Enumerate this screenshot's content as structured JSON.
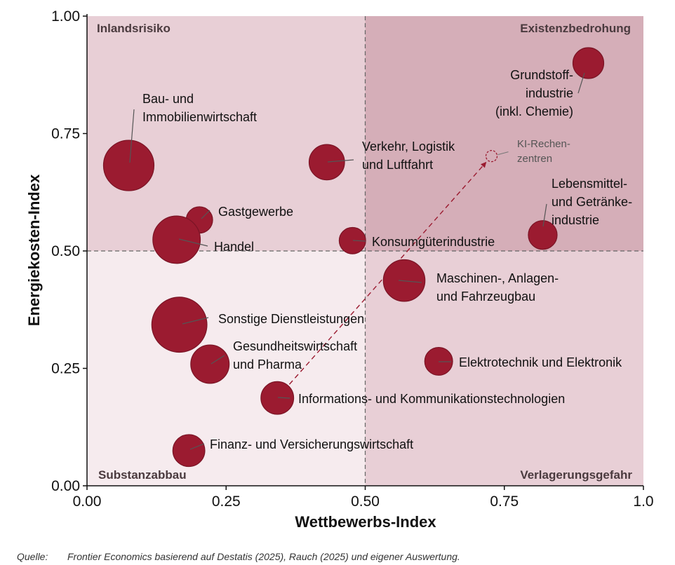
{
  "chart_data": {
    "type": "scatter",
    "subtype": "bubble",
    "xlabel": "Wettbewerbs-Index",
    "ylabel": "Energiekosten-Index",
    "xlim": [
      0,
      1
    ],
    "ylim": [
      0,
      1
    ],
    "xticks": [
      "0.00",
      "0.25",
      "0.50",
      "0.75",
      "1.0"
    ],
    "yticks": [
      "0.00",
      "0.25",
      "0.50",
      "0.75",
      "1.00"
    ],
    "quadrant_split": {
      "x": 0.5,
      "y": 0.5
    },
    "quadrants": {
      "top_left": "Inlandsrisiko",
      "top_right": "Existenzbedrohung",
      "bottom_left": "Substanzabbau",
      "bottom_right": "Verlagerungsgefahr"
    },
    "colors": {
      "bubble": "#9b1b30",
      "bubble_edge": "#7a1425",
      "quad_top_left": "#e8cfd6",
      "quad_top_right": "#d5aeb8",
      "quad_bottom_left": "#f6ebee",
      "quad_bottom_right": "#e8cfd6"
    },
    "points": [
      {
        "label": [
          "Bau- und",
          "Immobilienwirtschaft"
        ],
        "x": 0.075,
        "y": 0.682,
        "size": 1.0
      },
      {
        "label": [
          "Gastgewerbe"
        ],
        "x": 0.202,
        "y": 0.566,
        "size": 0.15
      },
      {
        "label": [
          "Handel"
        ],
        "x": 0.161,
        "y": 0.524,
        "size": 0.85
      },
      {
        "label": [
          "Sonstige Dienstleistungen"
        ],
        "x": 0.166,
        "y": 0.343,
        "size": 1.25
      },
      {
        "label": [
          "Gesundheitswirtschaft",
          "und Pharma"
        ],
        "x": 0.221,
        "y": 0.259,
        "size": 0.48
      },
      {
        "label": [
          "Finanz- und Versicherungswirtschaft"
        ],
        "x": 0.183,
        "y": 0.075,
        "size": 0.28
      },
      {
        "label": [
          "Informations- und Kommunikationstechnologien"
        ],
        "x": 0.342,
        "y": 0.187,
        "size": 0.3
      },
      {
        "label": [
          "Verkehr, Logistik",
          "und Luftfahrt"
        ],
        "x": 0.431,
        "y": 0.689,
        "size": 0.38
      },
      {
        "label": [
          "Konsumgüterindustrie"
        ],
        "x": 0.477,
        "y": 0.522,
        "size": 0.15
      },
      {
        "label": [
          "Maschinen-, Anlagen-",
          "und Fahrzeugbau"
        ],
        "x": 0.57,
        "y": 0.437,
        "size": 0.6
      },
      {
        "label": [
          "Elektrotechnik und Elektronik"
        ],
        "x": 0.632,
        "y": 0.265,
        "size": 0.18
      },
      {
        "label": [
          "Grundstoff-",
          "industrie",
          "(inkl. Chemie)"
        ],
        "x": 0.901,
        "y": 0.9,
        "size": 0.25
      },
      {
        "label": [
          "Lebensmittel-",
          "und Getränke-",
          "industrie"
        ],
        "x": 0.819,
        "y": 0.534,
        "size": 0.2
      }
    ],
    "hypothetical_point": {
      "label": [
        "KI-Rechen-",
        "zentren"
      ],
      "x": 0.727,
      "y": 0.702
    },
    "arrow": {
      "from": {
        "x": 0.342,
        "y": 0.187
      },
      "to": {
        "x": 0.727,
        "y": 0.702
      }
    }
  },
  "source": {
    "label": "Quelle:",
    "text": "Frontier Economics basierend auf Destatis (2025), Rauch (2025) und eigener Auswertung."
  }
}
